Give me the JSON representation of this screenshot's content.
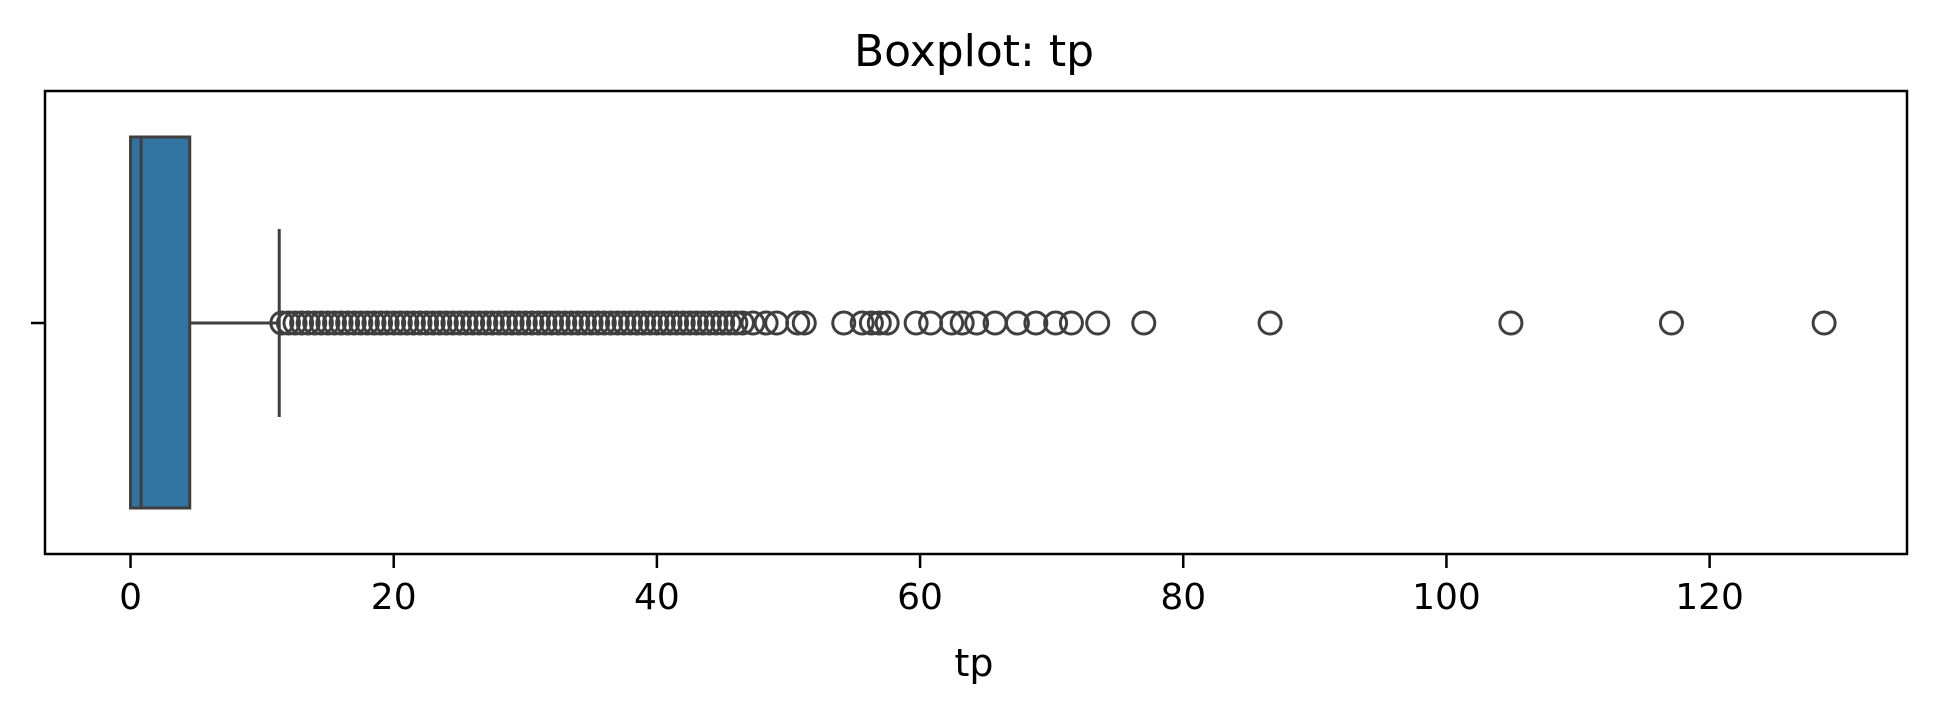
{
  "chart_data": {
    "type": "boxplot",
    "title": "Boxplot: tp",
    "xlabel": "tp",
    "ylabel": "",
    "orientation": "horizontal",
    "xlim": [
      -6.5,
      135
    ],
    "xticks": [
      0,
      20,
      40,
      60,
      80,
      100,
      120
    ],
    "grid": false,
    "legend": "none",
    "colors": {
      "box_fill": "#3274a1",
      "lines": "#3f3f3f",
      "frame": "#000000"
    },
    "box": {
      "min": 0,
      "q1": 0,
      "median": 0.8,
      "q3": 4.5,
      "whisker_low": 0,
      "whisker_high": 11.3
    },
    "outliers": [
      11.5,
      12,
      12.5,
      13,
      13.5,
      14,
      14.5,
      15,
      15.5,
      16,
      16.5,
      17,
      17.5,
      18,
      18.5,
      19,
      19.5,
      20,
      20.5,
      21,
      21.5,
      22,
      22.5,
      23,
      23.5,
      24,
      24.5,
      25,
      25.5,
      26,
      26.5,
      27,
      27.5,
      28,
      28.5,
      29,
      29.5,
      30,
      30.5,
      31,
      31.5,
      32,
      32.5,
      33,
      33.5,
      34,
      34.5,
      35,
      35.5,
      36,
      36.5,
      37,
      37.5,
      38,
      38.5,
      39,
      39.5,
      40,
      40.5,
      41,
      41.5,
      42,
      42.5,
      43,
      43.5,
      44,
      44.5,
      45,
      45.5,
      46,
      46.5,
      47.3,
      48.3,
      49.1,
      50.7,
      51.2,
      54.2,
      55.6,
      56.3,
      56.9,
      57.5,
      59.7,
      60.8,
      62.4,
      63.2,
      64.3,
      65.7,
      67.4,
      68.8,
      70.3,
      71.5,
      73.5,
      77,
      86.6,
      104.9,
      117.1,
      128.7
    ]
  }
}
